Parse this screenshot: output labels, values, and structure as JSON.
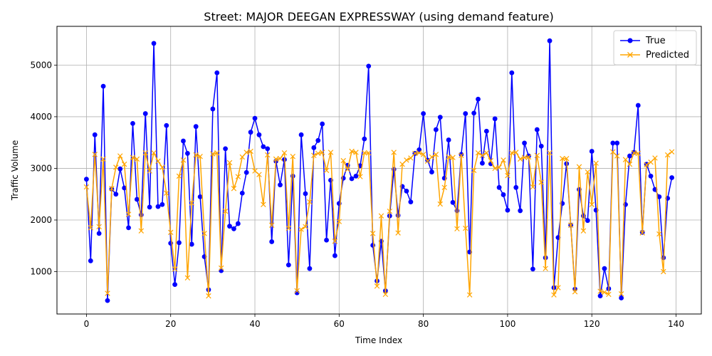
{
  "chart_data": {
    "type": "line",
    "title": "Street: MAJOR DEEGAN EXPRESSWAY (using demand feature)",
    "xlabel": "Time Index",
    "ylabel": "Traffic Volume",
    "xlim": [
      -7,
      146
    ],
    "ylim": [
      180,
      5750
    ],
    "xticks": [
      0,
      20,
      40,
      60,
      80,
      100,
      120,
      140
    ],
    "yticks": [
      1000,
      2000,
      3000,
      4000,
      5000
    ],
    "grid": true,
    "legend_position": "top-right",
    "colors": {
      "true": "#0000ff",
      "predicted": "#ffa500"
    },
    "series": [
      {
        "name": "True",
        "marker": "circle",
        "values": [
          2790,
          1210,
          3650,
          1740,
          4590,
          440,
          2600,
          2500,
          2990,
          2620,
          1850,
          3870,
          2400,
          2100,
          4060,
          2250,
          5420,
          2260,
          2300,
          3830,
          1550,
          750,
          1560,
          3530,
          3290,
          1530,
          3810,
          2450,
          1290,
          650,
          4150,
          4850,
          1020,
          3380,
          1880,
          1830,
          1930,
          2520,
          2920,
          3700,
          3970,
          3650,
          3420,
          3380,
          1580,
          3140,
          2680,
          3170,
          1130,
          2850,
          590,
          3650,
          2510,
          1060,
          3400,
          3540,
          3860,
          1610,
          2770,
          1310,
          2320,
          2810,
          3060,
          2800,
          2850,
          3050,
          3570,
          4980,
          1510,
          820,
          1590,
          630,
          2080,
          2980,
          2090,
          2650,
          2560,
          2350,
          3290,
          3360,
          4060,
          3160,
          2930,
          3750,
          3990,
          2810,
          3550,
          2340,
          2180,
          3270,
          4060,
          1380,
          4070,
          4340,
          3100,
          3720,
          3090,
          3960,
          2630,
          2490,
          2190,
          4850,
          2630,
          2180,
          3490,
          3240,
          1050,
          3750,
          3430,
          1270,
          5470,
          690,
          1660,
          2320,
          3090,
          1900,
          660,
          2590,
          2080,
          1990,
          3330,
          2190,
          530,
          1060,
          670,
          3490,
          3490,
          490,
          2300,
          3240,
          3310,
          4220,
          1760,
          3080,
          2850,
          2590,
          2450,
          1270,
          2420,
          2820
        ]
      },
      {
        "name": "Predicted",
        "marker": "x",
        "values": [
          2640,
          1850,
          3270,
          1870,
          3180,
          580,
          2610,
          3020,
          3240,
          3080,
          2110,
          3210,
          3180,
          1790,
          3300,
          2950,
          3300,
          3140,
          3020,
          2520,
          1760,
          1050,
          2850,
          3160,
          880,
          2330,
          3260,
          3230,
          1740,
          530,
          3280,
          3300,
          1070,
          2170,
          3110,
          2610,
          2840,
          3220,
          3310,
          3330,
          2950,
          2880,
          2300,
          3260,
          1900,
          3180,
          3190,
          3300,
          1840,
          3230,
          630,
          1820,
          1870,
          2350,
          3250,
          3290,
          3310,
          2960,
          3310,
          1590,
          1970,
          3150,
          2980,
          3330,
          3310,
          2840,
          3300,
          3300,
          1740,
          720,
          2080,
          560,
          2170,
          3310,
          1750,
          3080,
          3160,
          3200,
          3290,
          3300,
          3270,
          3140,
          3220,
          3270,
          2310,
          2630,
          3220,
          3210,
          1830,
          3250,
          1840,
          550,
          2960,
          3300,
          3250,
          3300,
          3150,
          3000,
          3020,
          3160,
          2860,
          3300,
          3310,
          3180,
          3210,
          3220,
          2640,
          3250,
          2730,
          1060,
          3300,
          550,
          690,
          3190,
          3190,
          1900,
          610,
          3030,
          1790,
          2930,
          2300,
          3100,
          620,
          600,
          560,
          3320,
          3240,
          570,
          3170,
          3080,
          3300,
          3290,
          1750,
          3070,
          3120,
          3200,
          1730,
          1000,
          3260,
          3320
        ]
      }
    ]
  }
}
